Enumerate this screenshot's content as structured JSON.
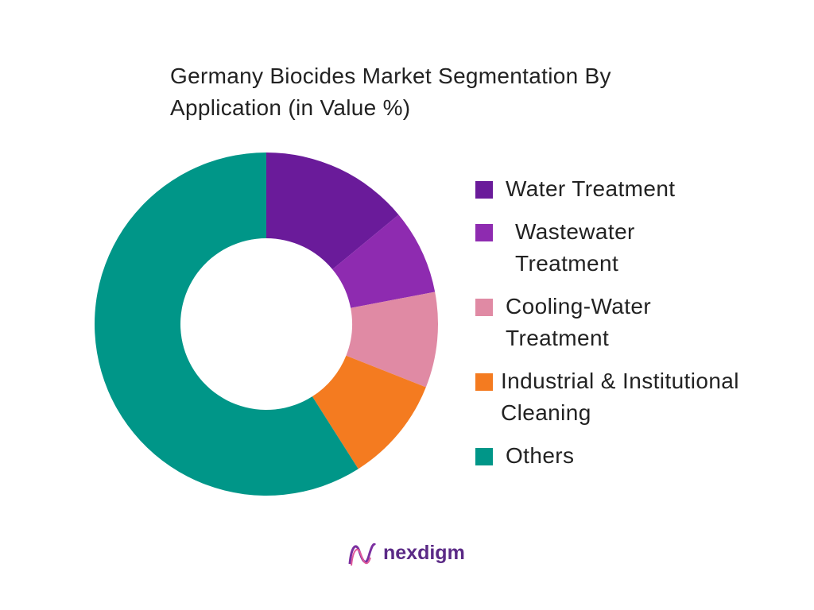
{
  "chart_data": {
    "type": "donut",
    "title": "Germany Biocides Market Segmentation By Application (in Value %)",
    "categories": [
      "Water Treatment",
      "Wastewater Treatment",
      "Cooling-Water Treatment",
      "Industrial & Institutional Cleaning",
      "Others"
    ],
    "values": [
      14,
      8,
      9,
      10,
      59
    ],
    "colors": [
      "#6a1b9a",
      "#8e2bb0",
      "#e08aa4",
      "#f47b20",
      "#009688"
    ],
    "legend": "right"
  },
  "brand": "nexdigm"
}
